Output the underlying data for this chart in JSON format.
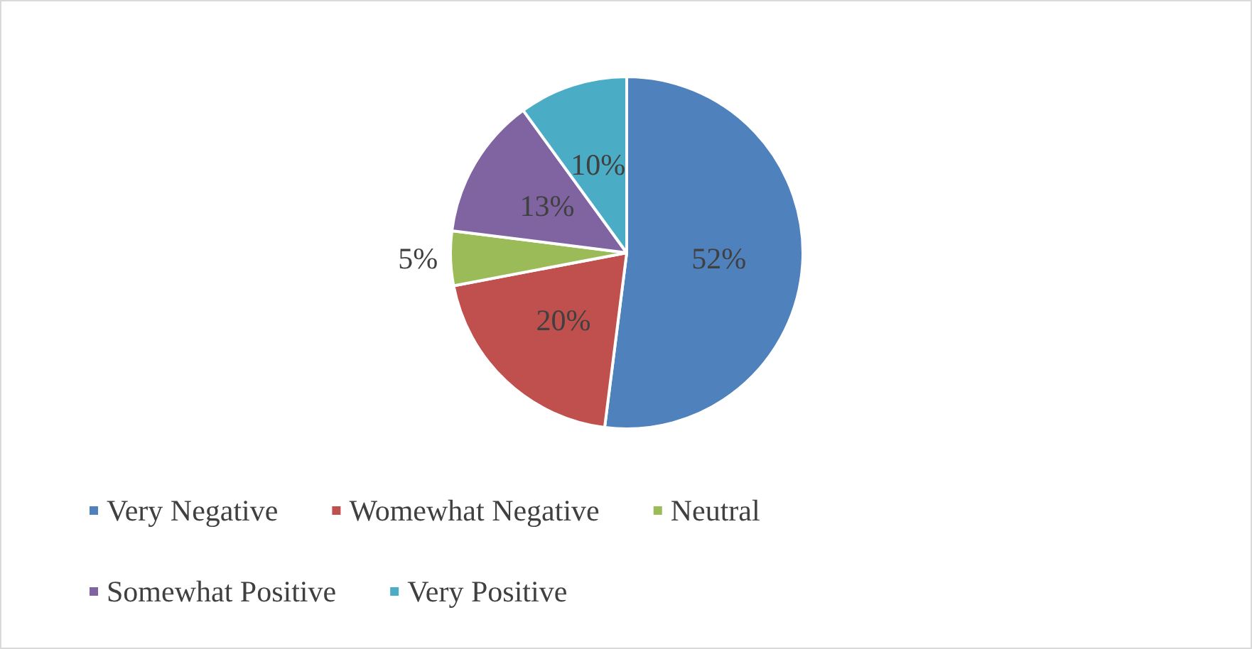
{
  "chart_data": {
    "type": "pie",
    "categories": [
      "Very Negative",
      "Womewhat Negative",
      "Neutral",
      "Somewhat Positive",
      "Very Positive"
    ],
    "values": [
      52,
      20,
      5,
      13,
      10
    ],
    "colors": [
      "#4f81bd",
      "#c0504d",
      "#9bbb59",
      "#8064a2",
      "#4bacc6"
    ],
    "value_labels": [
      "52%",
      "20%",
      "5%",
      "13%",
      "10%"
    ],
    "legend": "bottom"
  }
}
